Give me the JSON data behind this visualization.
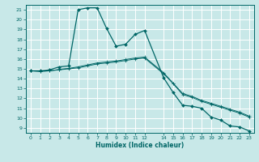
{
  "xlabel": "Humidex (Indice chaleur)",
  "bg_color": "#c8e8e8",
  "grid_color": "#ffffff",
  "line_color": "#006666",
  "xlim": [
    -0.5,
    23.5
  ],
  "ylim": [
    8.5,
    21.5
  ],
  "xticks": [
    0,
    1,
    2,
    3,
    4,
    5,
    6,
    7,
    8,
    9,
    10,
    11,
    12,
    14,
    15,
    16,
    17,
    18,
    19,
    20,
    21,
    22,
    23
  ],
  "yticks": [
    9,
    10,
    11,
    12,
    13,
    14,
    15,
    16,
    17,
    18,
    19,
    20,
    21
  ],
  "series1_x": [
    0,
    1,
    2,
    3,
    4,
    5,
    6,
    7,
    8,
    9,
    10,
    11,
    12,
    14,
    15,
    16,
    17,
    18,
    19,
    20,
    21,
    22,
    23
  ],
  "series1_y": [
    14.8,
    14.8,
    14.9,
    15.2,
    15.3,
    21.0,
    21.2,
    21.2,
    19.1,
    17.3,
    17.5,
    18.5,
    18.9,
    14.1,
    12.6,
    11.3,
    11.2,
    11.0,
    10.1,
    9.8,
    9.2,
    9.1,
    8.7
  ],
  "series2_x": [
    0,
    1,
    2,
    3,
    4,
    5,
    6,
    7,
    8,
    9,
    10,
    11,
    12,
    14,
    15,
    16,
    17,
    18,
    19,
    20,
    21,
    22,
    23
  ],
  "series2_y": [
    14.8,
    14.75,
    14.8,
    14.9,
    15.0,
    15.1,
    15.3,
    15.5,
    15.6,
    15.7,
    15.85,
    16.0,
    16.1,
    14.5,
    13.5,
    12.4,
    12.1,
    11.7,
    11.4,
    11.1,
    10.8,
    10.5,
    10.1
  ],
  "series3_x": [
    0,
    1,
    2,
    3,
    4,
    5,
    6,
    7,
    8,
    9,
    10,
    11,
    12,
    14,
    15,
    16,
    17,
    18,
    19,
    20,
    21,
    22,
    23
  ],
  "series3_y": [
    14.8,
    14.75,
    14.8,
    14.95,
    15.05,
    15.2,
    15.4,
    15.6,
    15.7,
    15.8,
    15.95,
    16.1,
    16.2,
    14.6,
    13.55,
    12.5,
    12.2,
    11.8,
    11.5,
    11.2,
    10.9,
    10.6,
    10.2
  ]
}
